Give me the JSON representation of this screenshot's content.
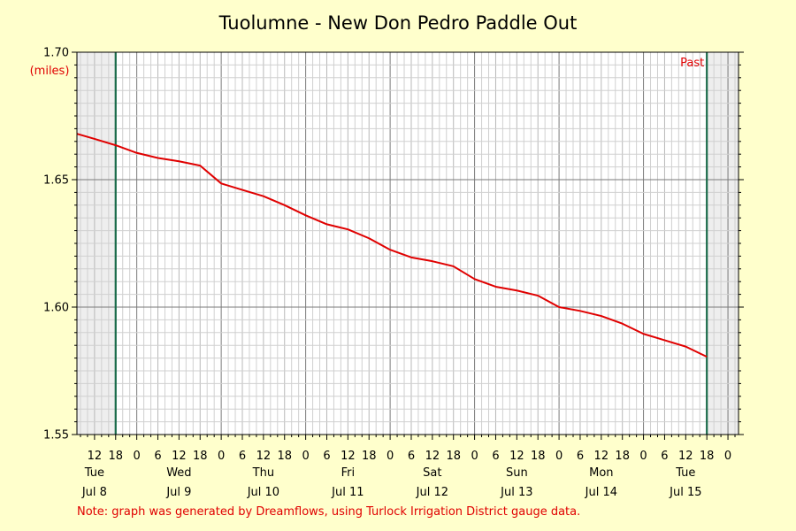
{
  "chart_data": {
    "type": "line",
    "title": "Tuolumne - New Don Pedro Paddle Out",
    "ylabel": "(miles)",
    "ylim": [
      1.55,
      1.7
    ],
    "y_ticks": [
      "1.55",
      "1.60",
      "1.65",
      "1.70"
    ],
    "xlim": [
      "2025-07-08T07:00",
      "2025-07-16T03:00"
    ],
    "x_hour_ticks": [
      {
        "t": "2025-07-08T12:00",
        "label": "12"
      },
      {
        "t": "2025-07-08T18:00",
        "label": "18"
      },
      {
        "t": "2025-07-09T00:00",
        "label": "0"
      },
      {
        "t": "2025-07-09T06:00",
        "label": "6"
      },
      {
        "t": "2025-07-09T12:00",
        "label": "12"
      },
      {
        "t": "2025-07-09T18:00",
        "label": "18"
      },
      {
        "t": "2025-07-10T00:00",
        "label": "0"
      },
      {
        "t": "2025-07-10T06:00",
        "label": "6"
      },
      {
        "t": "2025-07-10T12:00",
        "label": "12"
      },
      {
        "t": "2025-07-10T18:00",
        "label": "18"
      },
      {
        "t": "2025-07-11T00:00",
        "label": "0"
      },
      {
        "t": "2025-07-11T06:00",
        "label": "6"
      },
      {
        "t": "2025-07-11T12:00",
        "label": "12"
      },
      {
        "t": "2025-07-11T18:00",
        "label": "18"
      },
      {
        "t": "2025-07-12T00:00",
        "label": "0"
      },
      {
        "t": "2025-07-12T06:00",
        "label": "6"
      },
      {
        "t": "2025-07-12T12:00",
        "label": "12"
      },
      {
        "t": "2025-07-12T18:00",
        "label": "18"
      },
      {
        "t": "2025-07-13T00:00",
        "label": "0"
      },
      {
        "t": "2025-07-13T06:00",
        "label": "6"
      },
      {
        "t": "2025-07-13T12:00",
        "label": "12"
      },
      {
        "t": "2025-07-13T18:00",
        "label": "18"
      },
      {
        "t": "2025-07-14T00:00",
        "label": "0"
      },
      {
        "t": "2025-07-14T06:00",
        "label": "6"
      },
      {
        "t": "2025-07-14T12:00",
        "label": "12"
      },
      {
        "t": "2025-07-14T18:00",
        "label": "18"
      },
      {
        "t": "2025-07-15T00:00",
        "label": "0"
      },
      {
        "t": "2025-07-15T06:00",
        "label": "6"
      },
      {
        "t": "2025-07-15T12:00",
        "label": "12"
      },
      {
        "t": "2025-07-15T18:00",
        "label": "18"
      },
      {
        "t": "2025-07-16T00:00",
        "label": "0"
      }
    ],
    "x_day_labels": [
      {
        "t": "2025-07-08T12:00",
        "weekday": "Tue",
        "date": "Jul 8"
      },
      {
        "t": "2025-07-09T12:00",
        "weekday": "Wed",
        "date": "Jul 9"
      },
      {
        "t": "2025-07-10T12:00",
        "weekday": "Thu",
        "date": "Jul 10"
      },
      {
        "t": "2025-07-11T12:00",
        "weekday": "Fri",
        "date": "Jul 11"
      },
      {
        "t": "2025-07-12T12:00",
        "weekday": "Sat",
        "date": "Jul 12"
      },
      {
        "t": "2025-07-13T12:00",
        "weekday": "Sun",
        "date": "Jul 13"
      },
      {
        "t": "2025-07-14T12:00",
        "weekday": "Mon",
        "date": "Jul 14"
      },
      {
        "t": "2025-07-15T12:00",
        "weekday": "Tue",
        "date": "Jul 15"
      }
    ],
    "grid": true,
    "shaded_ranges": [
      {
        "from": "2025-07-08T07:00",
        "to": "2025-07-08T18:00"
      },
      {
        "from": "2025-07-15T18:00",
        "to": "2025-07-16T03:00"
      }
    ],
    "markers": [
      {
        "t": "2025-07-08T18:00",
        "label": ""
      },
      {
        "t": "2025-07-15T18:00",
        "label": "Past"
      }
    ],
    "series": [
      {
        "color": "#e00000",
        "points": [
          {
            "t": "2025-07-08T07:00",
            "y": 1.668
          },
          {
            "t": "2025-07-08T12:00",
            "y": 1.666
          },
          {
            "t": "2025-07-08T18:00",
            "y": 1.6635
          },
          {
            "t": "2025-07-09T00:00",
            "y": 1.6605
          },
          {
            "t": "2025-07-09T06:00",
            "y": 1.6585
          },
          {
            "t": "2025-07-09T12:00",
            "y": 1.6572
          },
          {
            "t": "2025-07-09T18:00",
            "y": 1.6555
          },
          {
            "t": "2025-07-10T00:00",
            "y": 1.6485
          },
          {
            "t": "2025-07-10T06:00",
            "y": 1.646
          },
          {
            "t": "2025-07-10T12:00",
            "y": 1.6435
          },
          {
            "t": "2025-07-10T18:00",
            "y": 1.64
          },
          {
            "t": "2025-07-11T00:00",
            "y": 1.636
          },
          {
            "t": "2025-07-11T06:00",
            "y": 1.6325
          },
          {
            "t": "2025-07-11T12:00",
            "y": 1.6305
          },
          {
            "t": "2025-07-11T18:00",
            "y": 1.627
          },
          {
            "t": "2025-07-12T00:00",
            "y": 1.6225
          },
          {
            "t": "2025-07-12T06:00",
            "y": 1.6195
          },
          {
            "t": "2025-07-12T12:00",
            "y": 1.618
          },
          {
            "t": "2025-07-12T18:00",
            "y": 1.616
          },
          {
            "t": "2025-07-13T00:00",
            "y": 1.611
          },
          {
            "t": "2025-07-13T06:00",
            "y": 1.608
          },
          {
            "t": "2025-07-13T12:00",
            "y": 1.6065
          },
          {
            "t": "2025-07-13T18:00",
            "y": 1.6045
          },
          {
            "t": "2025-07-14T00:00",
            "y": 1.6
          },
          {
            "t": "2025-07-14T06:00",
            "y": 1.5985
          },
          {
            "t": "2025-07-14T12:00",
            "y": 1.5965
          },
          {
            "t": "2025-07-14T18:00",
            "y": 1.5935
          },
          {
            "t": "2025-07-15T00:00",
            "y": 1.5895
          },
          {
            "t": "2025-07-15T06:00",
            "y": 1.587
          },
          {
            "t": "2025-07-15T12:00",
            "y": 1.5845
          },
          {
            "t": "2025-07-15T18:00",
            "y": 1.5805
          }
        ]
      }
    ],
    "colors": {
      "background": "#ffffcc",
      "plot_area": "#ffffff",
      "shaded": "#eeeeee",
      "grid_minor": "#d0d0d0",
      "grid_major": "#7a7a7a",
      "marker_line": "#1a6b4a",
      "line": "#e00000",
      "note": "#e00000"
    },
    "note": "Note: graph was generated by Dreamflows, using Turlock Irrigation District gauge data."
  }
}
